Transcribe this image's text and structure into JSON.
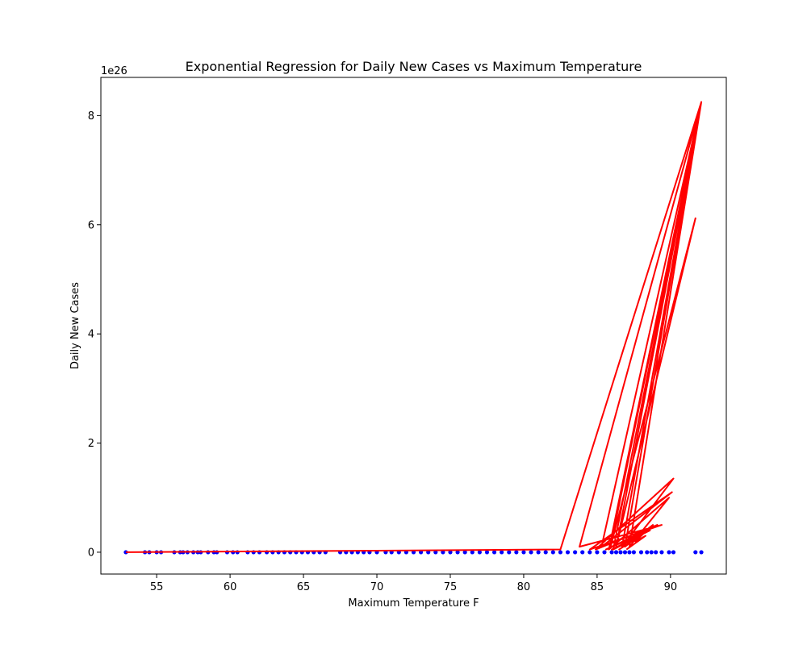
{
  "chart_data": {
    "type": "scatter",
    "title": "Exponential Regression for Daily New Cases vs Maximum Temperature",
    "xlabel": "Maximum Temperature F",
    "ylabel": "Daily New Cases",
    "y_offset_label": "1e26",
    "y_scale_exponent": 26,
    "xlim": [
      51.2,
      93.8
    ],
    "ylim": [
      -0.4,
      8.7
    ],
    "x_ticks": [
      55,
      60,
      65,
      70,
      75,
      80,
      85,
      90
    ],
    "y_ticks": [
      0,
      2,
      4,
      6,
      8
    ],
    "grid": false,
    "legend": "none",
    "series": [
      {
        "kind": "points",
        "color": "#0000ff",
        "x": [
          52.9,
          54.2,
          54.5,
          55.0,
          55.3,
          56.2,
          56.6,
          56.8,
          57.1,
          57.5,
          57.8,
          58.0,
          58.5,
          58.9,
          59.1,
          59.8,
          60.2,
          60.5,
          61.2,
          61.6,
          62.0,
          62.5,
          62.9,
          63.3,
          63.7,
          64.1,
          64.5,
          64.9,
          65.3,
          65.7,
          66.1,
          66.5,
          67.5,
          67.9,
          68.3,
          68.7,
          69.1,
          69.5,
          70.0,
          70.6,
          71.0,
          71.5,
          72.0,
          72.5,
          73.0,
          73.5,
          74.0,
          74.5,
          75.0,
          75.5,
          76.0,
          76.5,
          77.0,
          77.5,
          78.0,
          78.5,
          79.0,
          79.5,
          80.0,
          80.5,
          81.0,
          81.5,
          82.0,
          82.5,
          83.0,
          83.5,
          84.0,
          84.5,
          85.0,
          85.5,
          86.0,
          86.3,
          86.6,
          86.9,
          87.2,
          87.5,
          88.0,
          88.4,
          88.7,
          89.0,
          89.4,
          89.9,
          90.2,
          91.7,
          92.1
        ],
        "y": [
          0,
          0,
          0,
          0,
          0,
          0,
          0,
          0,
          0,
          0,
          0,
          0,
          0,
          0,
          0,
          0,
          0,
          0,
          0,
          0,
          0,
          0,
          0,
          0,
          0,
          0,
          0,
          0,
          0,
          0,
          0,
          0,
          0,
          0,
          0,
          0,
          0,
          0,
          0,
          0,
          0,
          0,
          0,
          0,
          0,
          0,
          0,
          0,
          0,
          0,
          0,
          0,
          0,
          0,
          0,
          0,
          0,
          0,
          0,
          0,
          0,
          0,
          0,
          0,
          0,
          0,
          0,
          0,
          0,
          0,
          0,
          0,
          0,
          0,
          0,
          0,
          0,
          0,
          0,
          0,
          0,
          0,
          0,
          0,
          0
        ]
      },
      {
        "kind": "line",
        "color": "#ff0000",
        "x": [
          52.9,
          82.5,
          92.1,
          83.8,
          89.4,
          84.5,
          90.1,
          85.3,
          92.1,
          85.9,
          91.7,
          86.3,
          92.1,
          86.7,
          90.2,
          84.9,
          89.1,
          85.6,
          88.6,
          86.0,
          88.2,
          86.5,
          87.9,
          86.1,
          92.1,
          87.2,
          89.9,
          85.8,
          92.1,
          86.9,
          88.8,
          87.6,
          88.3,
          87.0
        ],
        "y": [
          0,
          0.05,
          8.25,
          0.1,
          0.5,
          0.05,
          1.1,
          0.1,
          8.25,
          0.08,
          6.12,
          0.1,
          8.25,
          0.1,
          1.35,
          0.05,
          0.5,
          0.05,
          0.4,
          0.05,
          0.35,
          0.05,
          0.3,
          0.05,
          8.25,
          0.1,
          1.0,
          0.05,
          8.25,
          0.1,
          0.5,
          0.2,
          0.3,
          0.05
        ]
      }
    ]
  }
}
